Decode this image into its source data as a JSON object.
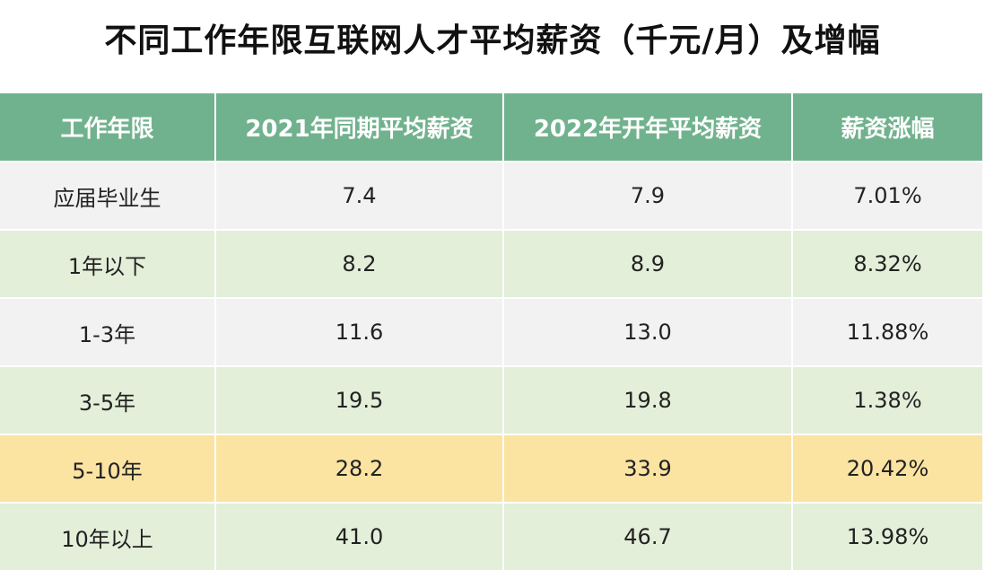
{
  "colors": {
    "header_bg": "#71b28e",
    "row_gray": "#f2f2f2",
    "row_green": "#e3efd9",
    "row_highlight": "#fbe3a2"
  },
  "chart_data": {
    "type": "table",
    "title": "不同工作年限互联网人才平均薪资（千元/月）及增幅",
    "columns": [
      "工作年限",
      "2021年同期平均薪资",
      "2022年开年平均薪资",
      "薪资涨幅"
    ],
    "rows": [
      {
        "years": "应届毕业生",
        "salary_2021": "7.4",
        "salary_2022": "7.9",
        "growth": "7.01%",
        "style": "row-gray"
      },
      {
        "years": "1年以下",
        "salary_2021": "8.2",
        "salary_2022": "8.9",
        "growth": "8.32%",
        "style": "row-green"
      },
      {
        "years": "1-3年",
        "salary_2021": "11.6",
        "salary_2022": "13.0",
        "growth": "11.88%",
        "style": "row-gray"
      },
      {
        "years": "3-5年",
        "salary_2021": "19.5",
        "salary_2022": "19.8",
        "growth": "1.38%",
        "style": "row-green"
      },
      {
        "years": "5-10年",
        "salary_2021": "28.2",
        "salary_2022": "33.9",
        "growth": "20.42%",
        "style": "row-yellow"
      },
      {
        "years": "10年以上",
        "salary_2021": "41.0",
        "salary_2022": "46.7",
        "growth": "13.98%",
        "style": "row-green"
      }
    ]
  }
}
